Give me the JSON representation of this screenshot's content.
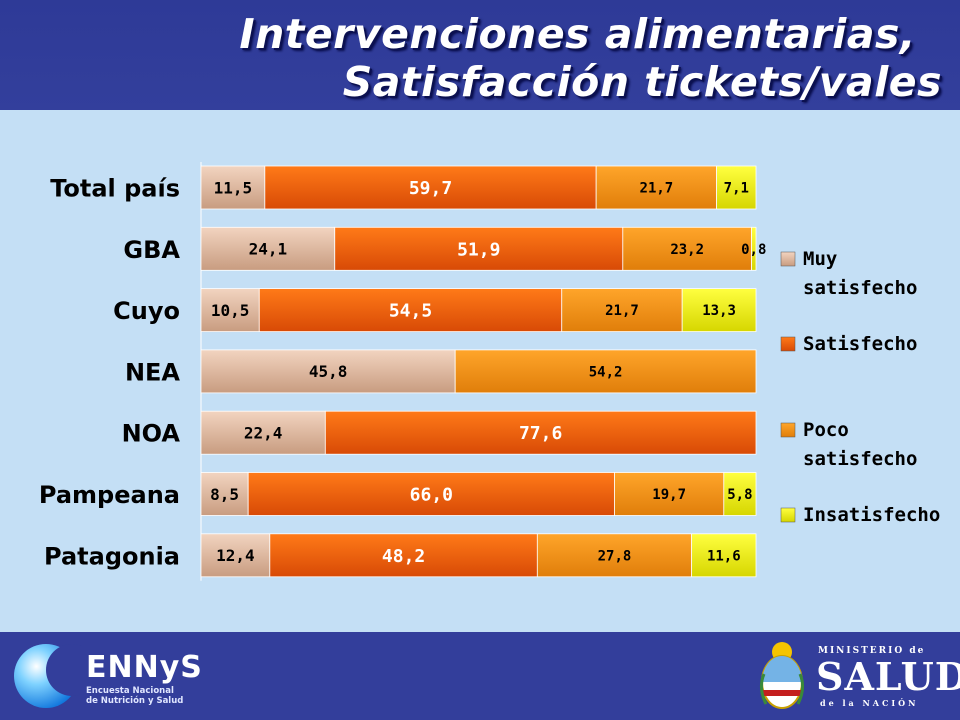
{
  "header": {
    "title_line1": "Intervenciones alimentarias,",
    "title_line2": "Satisfacción tickets/vales"
  },
  "chart_data": {
    "type": "bar",
    "orientation": "horizontal",
    "stacked": true,
    "categories": [
      "Total país",
      "GBA",
      "Cuyo",
      "NEA",
      "NOA",
      "Pampeana",
      "Patagonia"
    ],
    "series": [
      {
        "name": "Muy satisfecho",
        "color": "#d9b49b",
        "values": [
          11.5,
          24.1,
          10.5,
          45.8,
          22.4,
          8.5,
          12.4
        ]
      },
      {
        "name": "Satisfecho",
        "color": "#e8560c",
        "values": [
          59.7,
          51.9,
          54.5,
          0,
          77.6,
          66.0,
          48.2
        ]
      },
      {
        "name": "Poco satisfecho",
        "color": "#f08c14",
        "values": [
          21.7,
          23.2,
          21.7,
          54.2,
          0,
          19.7,
          27.8
        ]
      },
      {
        "name": "Insatisfecho",
        "color": "#f2f200",
        "values": [
          7.1,
          0.8,
          13.3,
          0,
          0,
          5.8,
          11.6
        ]
      }
    ],
    "data_labels": [
      [
        "11,5",
        "59,7",
        "21,7",
        "7,1"
      ],
      [
        "24,1",
        "51,9",
        "23,2",
        "0,8"
      ],
      [
        "10,5",
        "54,5",
        "21,7",
        "13,3"
      ],
      [
        "45,8",
        "",
        "54,2",
        ""
      ],
      [
        "22,4",
        "77,6",
        "",
        ""
      ],
      [
        "8,5",
        "66,0",
        "19,7",
        "5,8"
      ],
      [
        "12,4",
        "48,2",
        "27,8",
        "11,6"
      ]
    ],
    "legend": {
      "position": "right",
      "entries": [
        {
          "line1": "Muy",
          "line2": "satisfecho"
        },
        {
          "line1": "Satisfecho",
          "line2": ""
        },
        {
          "line1": "Poco",
          "line2": "satisfecho"
        },
        {
          "line1": "Insatisfecho",
          "line2": ""
        }
      ]
    },
    "xlim": [
      0,
      100
    ],
    "grid": false
  },
  "footer": {
    "ennys_brand": "ENNyS",
    "ennys_sub_line1": "Encuesta Nacional",
    "ennys_sub_line2": "de Nutrición y Salud",
    "ministry_line1": "MINISTERIO de",
    "ministry_line2": "SALUD",
    "ministry_line3": "de la NACIÓN"
  }
}
